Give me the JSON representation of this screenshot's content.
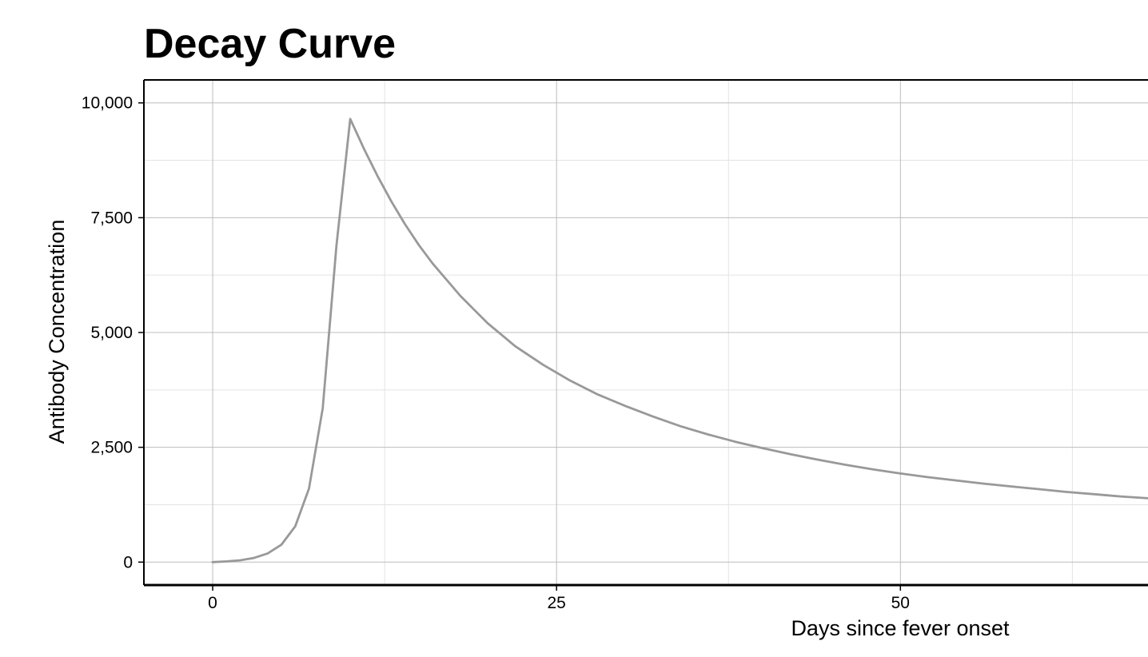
{
  "chart_data": {
    "type": "line",
    "title": "Decay Curve",
    "xlabel": "Days since fever onset",
    "ylabel": "Antibody Concentration",
    "xlim": [
      -5,
      68
    ],
    "ylim": [
      -500,
      10500
    ],
    "x_ticks": [
      0,
      25,
      50
    ],
    "x_tick_labels": [
      "0",
      "25",
      "50"
    ],
    "x_minor_grid": [
      12.5,
      37.5,
      62.5
    ],
    "y_ticks": [
      0,
      2500,
      5000,
      7500,
      10000
    ],
    "y_tick_labels": [
      "0",
      "2,500",
      "5,000",
      "7,500",
      "10,000"
    ],
    "y_minor_grid": [
      1250,
      3750,
      6250,
      8750
    ],
    "grid": true,
    "legend": "none",
    "line_color": "#999999",
    "series": [
      {
        "x": [
          0,
          1,
          2,
          3,
          4,
          5,
          6,
          7,
          8,
          9,
          10,
          11,
          12,
          13,
          14,
          15,
          16,
          17,
          18,
          19,
          20,
          22,
          24,
          26,
          28,
          30,
          32,
          34,
          36,
          38,
          40,
          42,
          44,
          46,
          48,
          50,
          52,
          54,
          56,
          58,
          60,
          62,
          64,
          66,
          68
        ],
        "values": [
          0,
          15,
          40,
          90,
          190,
          380,
          780,
          1600,
          3350,
          6900,
          9650,
          9000,
          8400,
          7850,
          7350,
          6900,
          6500,
          6150,
          5800,
          5500,
          5200,
          4700,
          4300,
          3950,
          3650,
          3400,
          3170,
          2960,
          2780,
          2620,
          2480,
          2350,
          2230,
          2120,
          2020,
          1930,
          1850,
          1780,
          1710,
          1650,
          1590,
          1530,
          1480,
          1430,
          1390
        ]
      }
    ]
  }
}
